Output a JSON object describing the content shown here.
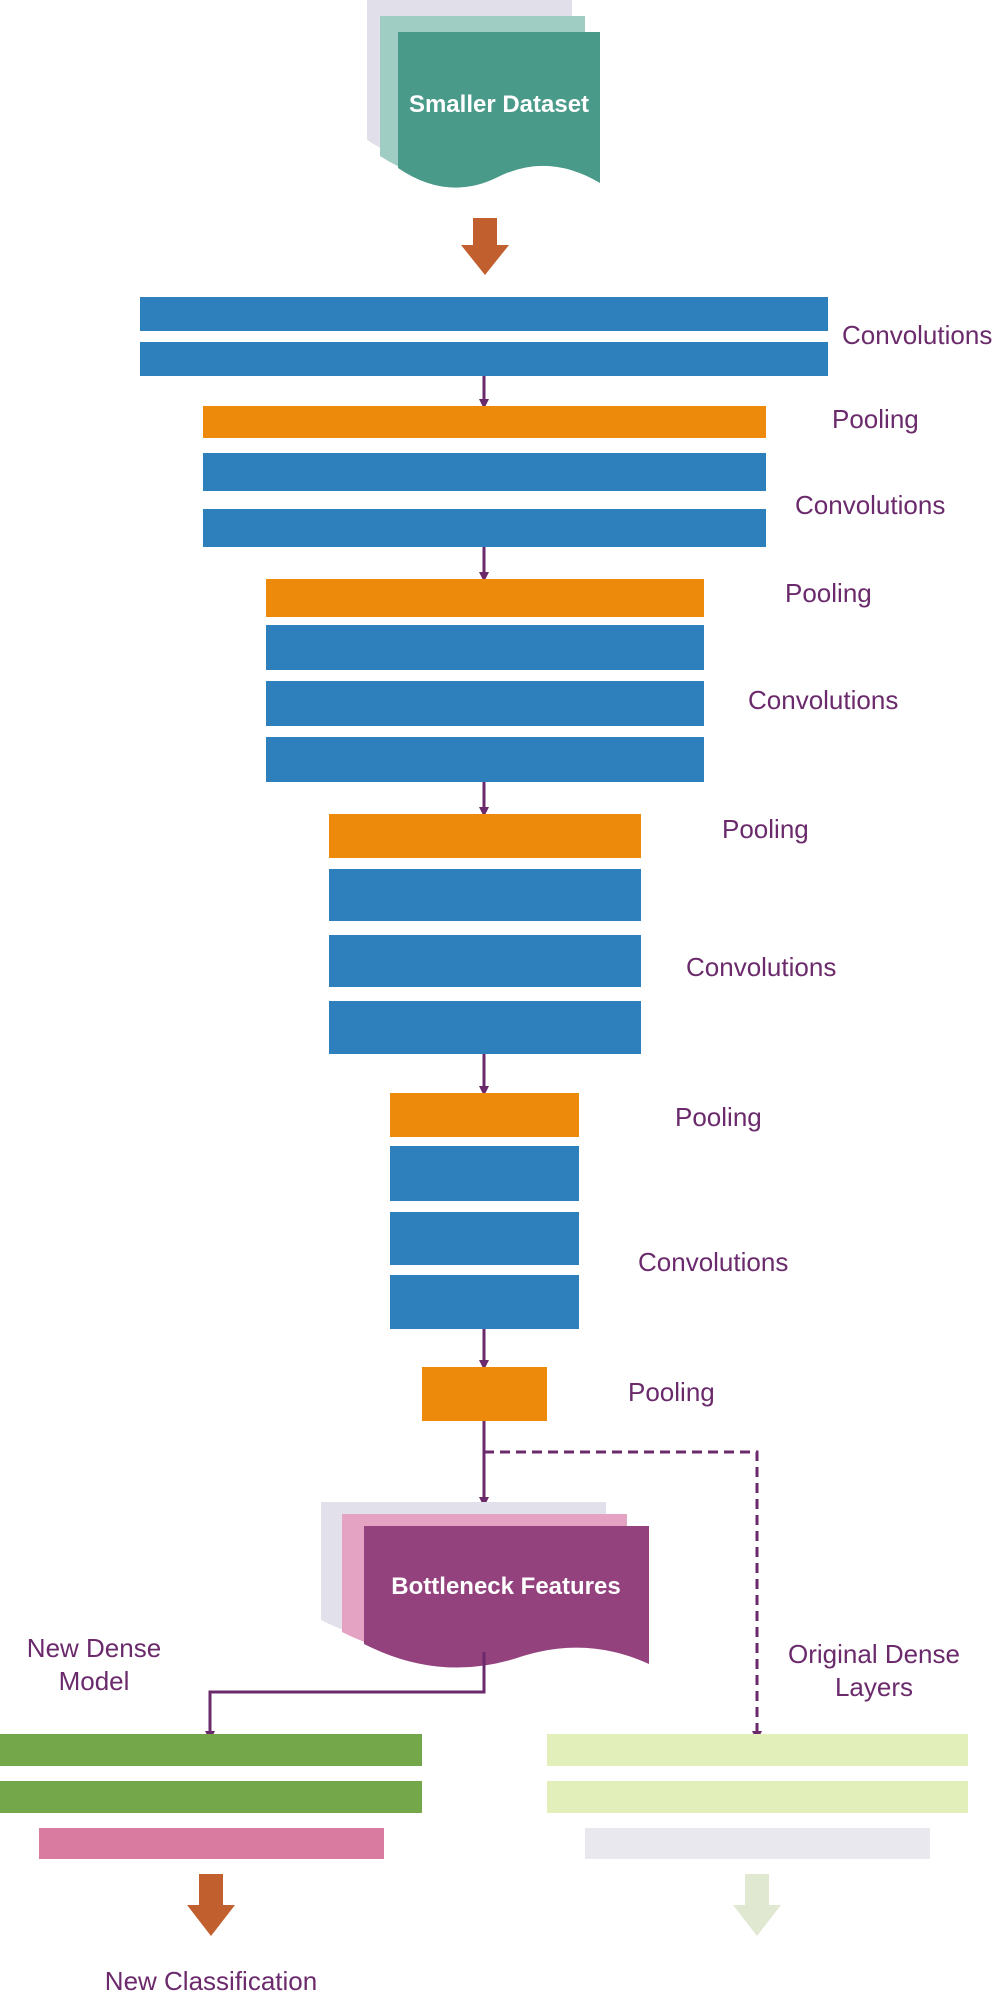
{
  "colors": {
    "conv": "#2e80bd",
    "pool": "#ee8a0b",
    "arrow": "#6b2a6b",
    "text": "#6b2a6b",
    "dataset": "#4a9a8a",
    "bottleneck": "#93427e",
    "new_dense": "#74a64a",
    "new_output": "#d97aa0",
    "orig_dense": "#e3efbb",
    "orig_output": "#e8e8ee",
    "big_arrow": "#c15f2e",
    "faded_arrow": "#e1e8d2"
  },
  "dataset": {
    "label": "Smaller Dataset"
  },
  "stages": [
    {
      "conv_label": "Convolutions",
      "pool_label": "Pooling"
    },
    {
      "conv_label": "Convolutions",
      "pool_label": "Pooling"
    },
    {
      "conv_label": "Convolutions",
      "pool_label": "Pooling"
    },
    {
      "conv_label": "Convolutions",
      "pool_label": "Pooling"
    },
    {
      "conv_label": "Convolutions",
      "pool_label": "Pooling"
    }
  ],
  "bottleneck": {
    "label": "Bottleneck Features"
  },
  "new_dense": {
    "label_line1": "New Dense",
    "label_line2": "Model"
  },
  "original_dense": {
    "label_line1": "Original Dense",
    "label_line2": "Layers"
  },
  "output": {
    "label": "New Classification"
  }
}
